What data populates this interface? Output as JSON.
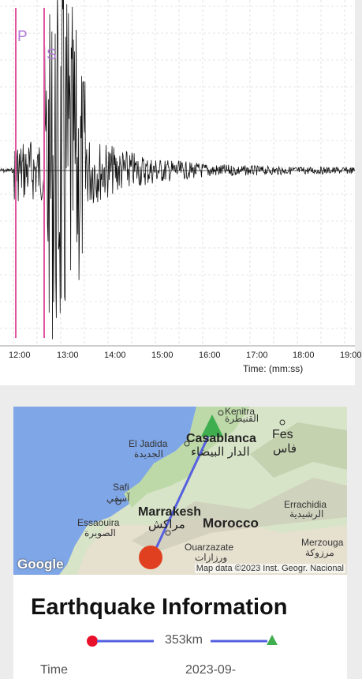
{
  "seismogram": {
    "phase_p": "P",
    "phase_s": "S",
    "time_ticks": [
      "12:00",
      "13:00",
      "14:00",
      "15:00",
      "16:00",
      "17:00",
      "18:00",
      "19:00"
    ],
    "x_axis_label": "Time: (mm:ss)",
    "trace_color": "#111111",
    "phase_line_color": "#e0559f"
  },
  "map": {
    "labels": {
      "kenitra": "Kenitra",
      "kenitra_ar": "القنيطرة",
      "casablanca": "Casablanca",
      "casablanca_ar": "الدار البيضاء",
      "fes": "Fes",
      "fes_ar": "فاس",
      "el_jadida": "El Jadida",
      "el_jadida_ar": "الجديدة",
      "safi": "Safi",
      "safi_ar": "آسفي",
      "marrakesh": "Marrakesh",
      "marrakesh_ar": "مراكش",
      "morocco": "Morocco",
      "essaouira": "Essaouira",
      "essaouira_ar": "الصويرة",
      "errachidia": "Errachidia",
      "errachidia_ar": "الرشيدية",
      "ouarzazate": "Ouarzazate",
      "ouarzazate_ar": "ورزازات",
      "merzouga": "Merzouga",
      "merzouga_ar": "مرزوكة"
    },
    "google_logo": "Google",
    "attribution": "Map data ©2023 Inst. Geogr. Nacional",
    "epicenter_color": "#e04020",
    "station_color": "#3fae4f",
    "path_color": "#5560e0"
  },
  "info": {
    "title": "Earthquake Information",
    "distance": "353km",
    "time_label": "Time",
    "time_value": "2023-09-"
  }
}
